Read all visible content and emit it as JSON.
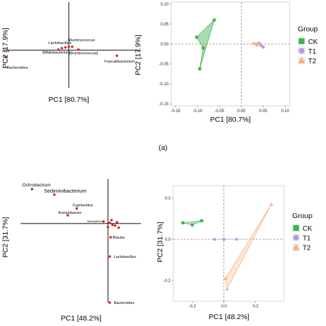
{
  "figure": {
    "caption_a": "(a)"
  },
  "colors": {
    "ck": "#3fb34f",
    "t1": "#b39ddb",
    "t2": "#f4b183",
    "taxa": "#cc2222",
    "dashed": "#888888"
  },
  "chart_data": [
    {
      "id": "a-left",
      "type": "scatter",
      "title": "",
      "xlabel": "PC1 [80.7%]",
      "ylabel": "PC2 [17.9%]",
      "points": [
        {
          "label": "Bacteroides",
          "x": -0.92,
          "y": -0.1
        },
        {
          "label": "Bifidobacterium",
          "x": -0.15,
          "y": 0.01
        },
        {
          "label": "Lactobacillus",
          "x": -0.1,
          "y": 0.03
        },
        {
          "label": "",
          "x": -0.05,
          "y": 0.04
        },
        {
          "label": "",
          "x": 0.0,
          "y": 0.05
        },
        {
          "label": "Ruminococcus",
          "x": 0.05,
          "y": 0.05
        },
        {
          "label": "[Ruminococcus]",
          "x": 0.14,
          "y": 0.01
        },
        {
          "label": "Faecalibacterium",
          "x": 0.7,
          "y": -0.08
        }
      ]
    },
    {
      "id": "a-right",
      "type": "scatter",
      "title": "",
      "xlabel": "PC1 [80.7%]",
      "ylabel": "PC2 [17.9%]",
      "xlim": [
        -0.16,
        0.11
      ],
      "ylim": [
        -0.155,
        0.105
      ],
      "xticks": [
        "-0.15",
        "-0.10",
        "-0.05",
        "0.00",
        "0.05",
        "0.10"
      ],
      "yticks": [
        "0.10",
        "0.05",
        "0.00",
        "-0.05",
        "-0.10",
        "-0.15"
      ],
      "legend_title": "Group",
      "legend_position": "right",
      "series": [
        {
          "name": "CK",
          "points": [
            [
              -0.102,
              0.017
            ],
            [
              -0.062,
              0.06
            ],
            [
              -0.095,
              -0.062
            ],
            [
              -0.087,
              -0.01
            ]
          ]
        },
        {
          "name": "T1",
          "points": [
            [
              0.038,
              0.001
            ],
            [
              0.041,
              0.002
            ],
            [
              0.045,
              -0.004
            ],
            [
              0.05,
              -0.008
            ]
          ]
        },
        {
          "name": "T2",
          "points": [
            [
              0.028,
              0.002
            ],
            [
              0.033,
              0.001
            ],
            [
              0.04,
              0.003
            ],
            [
              0.036,
              -0.002
            ]
          ]
        }
      ]
    },
    {
      "id": "b-left",
      "type": "scatter",
      "title": "",
      "xlabel": "PC1 [48.2%]",
      "ylabel": "PC2 [31.7%]",
      "points": [
        {
          "label": "Ochrobactrum",
          "x": -0.85,
          "y": 0.5
        },
        {
          "label": "Sediminibacterium",
          "x": -0.6,
          "y": 0.42
        },
        {
          "label": "Cupriavidus",
          "x": -0.35,
          "y": 0.22
        },
        {
          "label": "Acinetobacter",
          "x": -0.45,
          "y": 0.12
        },
        {
          "label": "Sphingobium",
          "x": -0.05,
          "y": 0.03
        },
        {
          "label": "",
          "x": 0.02,
          "y": 0.01
        },
        {
          "label": "",
          "x": 0.05,
          "y": -0.02
        },
        {
          "label": "",
          "x": 0.0,
          "y": -0.05
        },
        {
          "label": "",
          "x": 0.08,
          "y": -0.03
        },
        {
          "label": "",
          "x": 0.12,
          "y": -0.06
        },
        {
          "label": "",
          "x": 0.04,
          "y": 0.05
        },
        {
          "label": "",
          "x": 0.1,
          "y": 0.02
        },
        {
          "label": "Blautia",
          "x": 0.03,
          "y": -0.2
        },
        {
          "label": "Lactobacillus",
          "x": 0.02,
          "y": -0.48
        },
        {
          "label": "Bacteroides",
          "x": 0.02,
          "y": -1.15
        }
      ]
    },
    {
      "id": "b-right",
      "type": "scatter",
      "title": "",
      "xlabel": "PC1 [48.2%]",
      "ylabel": "PC2 [31.7%]",
      "xlim": [
        -0.32,
        0.38
      ],
      "ylim": [
        -0.3,
        0.26
      ],
      "xticks": [
        "-0.2",
        "0.0",
        "0.2"
      ],
      "yticks": [
        "0.2",
        "0.0",
        "-0.2"
      ],
      "legend_title": "Group",
      "legend_position": "right",
      "series": [
        {
          "name": "CK",
          "points": [
            [
              -0.26,
              0.08
            ],
            [
              -0.2,
              0.07
            ],
            [
              -0.14,
              0.09
            ]
          ]
        },
        {
          "name": "T1",
          "points": [
            [
              -0.06,
              0.0
            ],
            [
              0.0,
              0.0
            ],
            [
              0.08,
              0.0
            ]
          ]
        },
        {
          "name": "T2",
          "points": [
            [
              0.01,
              -0.19
            ],
            [
              0.3,
              0.17
            ],
            [
              0.02,
              -0.24
            ]
          ]
        }
      ]
    }
  ]
}
